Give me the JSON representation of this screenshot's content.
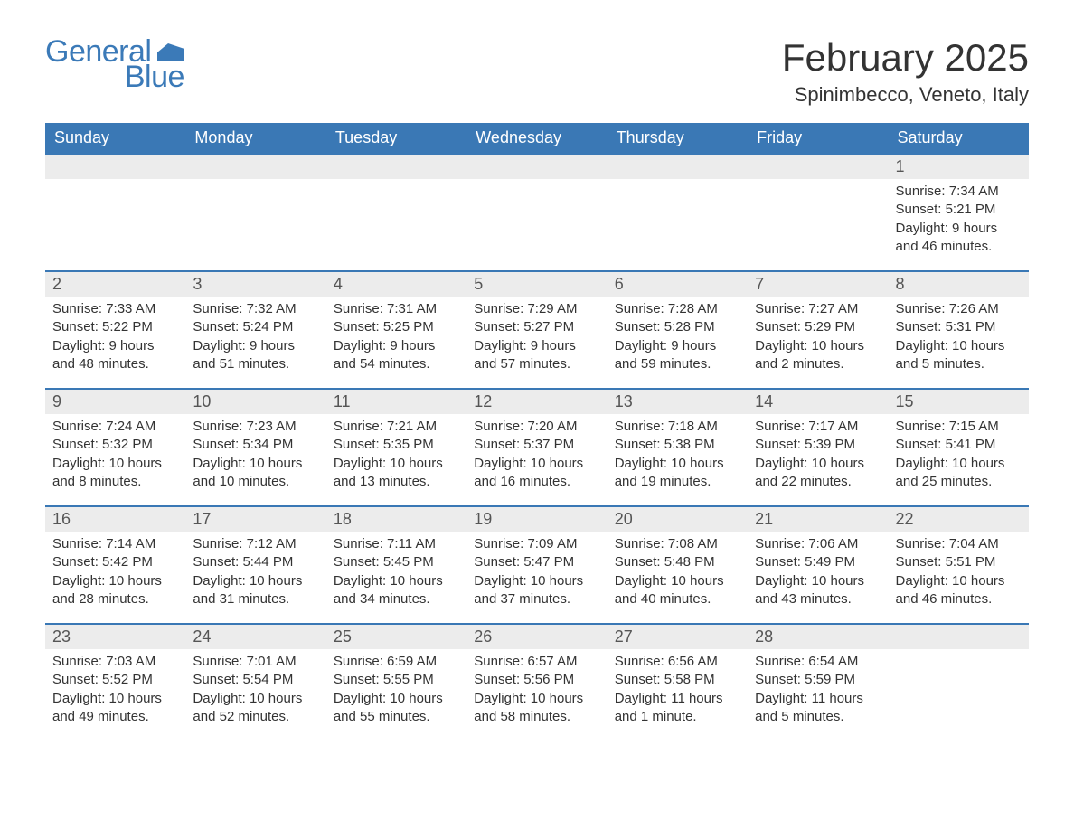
{
  "logo": {
    "text1": "General",
    "text2": "Blue"
  },
  "title": "February 2025",
  "location": "Spinimbecco, Veneto, Italy",
  "colors": {
    "header_bg": "#3a78b5",
    "header_text": "#ffffff",
    "daynum_bg": "#ececec",
    "daynum_border": "#3a78b5",
    "logo_color": "#3b7ab8",
    "body_text": "#333333"
  },
  "dayNames": [
    "Sunday",
    "Monday",
    "Tuesday",
    "Wednesday",
    "Thursday",
    "Friday",
    "Saturday"
  ],
  "weeks": [
    [
      null,
      null,
      null,
      null,
      null,
      null,
      {
        "n": "1",
        "sunrise": "Sunrise: 7:34 AM",
        "sunset": "Sunset: 5:21 PM",
        "daylight": "Daylight: 9 hours and 46 minutes."
      }
    ],
    [
      {
        "n": "2",
        "sunrise": "Sunrise: 7:33 AM",
        "sunset": "Sunset: 5:22 PM",
        "daylight": "Daylight: 9 hours and 48 minutes."
      },
      {
        "n": "3",
        "sunrise": "Sunrise: 7:32 AM",
        "sunset": "Sunset: 5:24 PM",
        "daylight": "Daylight: 9 hours and 51 minutes."
      },
      {
        "n": "4",
        "sunrise": "Sunrise: 7:31 AM",
        "sunset": "Sunset: 5:25 PM",
        "daylight": "Daylight: 9 hours and 54 minutes."
      },
      {
        "n": "5",
        "sunrise": "Sunrise: 7:29 AM",
        "sunset": "Sunset: 5:27 PM",
        "daylight": "Daylight: 9 hours and 57 minutes."
      },
      {
        "n": "6",
        "sunrise": "Sunrise: 7:28 AM",
        "sunset": "Sunset: 5:28 PM",
        "daylight": "Daylight: 9 hours and 59 minutes."
      },
      {
        "n": "7",
        "sunrise": "Sunrise: 7:27 AM",
        "sunset": "Sunset: 5:29 PM",
        "daylight": "Daylight: 10 hours and 2 minutes."
      },
      {
        "n": "8",
        "sunrise": "Sunrise: 7:26 AM",
        "sunset": "Sunset: 5:31 PM",
        "daylight": "Daylight: 10 hours and 5 minutes."
      }
    ],
    [
      {
        "n": "9",
        "sunrise": "Sunrise: 7:24 AM",
        "sunset": "Sunset: 5:32 PM",
        "daylight": "Daylight: 10 hours and 8 minutes."
      },
      {
        "n": "10",
        "sunrise": "Sunrise: 7:23 AM",
        "sunset": "Sunset: 5:34 PM",
        "daylight": "Daylight: 10 hours and 10 minutes."
      },
      {
        "n": "11",
        "sunrise": "Sunrise: 7:21 AM",
        "sunset": "Sunset: 5:35 PM",
        "daylight": "Daylight: 10 hours and 13 minutes."
      },
      {
        "n": "12",
        "sunrise": "Sunrise: 7:20 AM",
        "sunset": "Sunset: 5:37 PM",
        "daylight": "Daylight: 10 hours and 16 minutes."
      },
      {
        "n": "13",
        "sunrise": "Sunrise: 7:18 AM",
        "sunset": "Sunset: 5:38 PM",
        "daylight": "Daylight: 10 hours and 19 minutes."
      },
      {
        "n": "14",
        "sunrise": "Sunrise: 7:17 AM",
        "sunset": "Sunset: 5:39 PM",
        "daylight": "Daylight: 10 hours and 22 minutes."
      },
      {
        "n": "15",
        "sunrise": "Sunrise: 7:15 AM",
        "sunset": "Sunset: 5:41 PM",
        "daylight": "Daylight: 10 hours and 25 minutes."
      }
    ],
    [
      {
        "n": "16",
        "sunrise": "Sunrise: 7:14 AM",
        "sunset": "Sunset: 5:42 PM",
        "daylight": "Daylight: 10 hours and 28 minutes."
      },
      {
        "n": "17",
        "sunrise": "Sunrise: 7:12 AM",
        "sunset": "Sunset: 5:44 PM",
        "daylight": "Daylight: 10 hours and 31 minutes."
      },
      {
        "n": "18",
        "sunrise": "Sunrise: 7:11 AM",
        "sunset": "Sunset: 5:45 PM",
        "daylight": "Daylight: 10 hours and 34 minutes."
      },
      {
        "n": "19",
        "sunrise": "Sunrise: 7:09 AM",
        "sunset": "Sunset: 5:47 PM",
        "daylight": "Daylight: 10 hours and 37 minutes."
      },
      {
        "n": "20",
        "sunrise": "Sunrise: 7:08 AM",
        "sunset": "Sunset: 5:48 PM",
        "daylight": "Daylight: 10 hours and 40 minutes."
      },
      {
        "n": "21",
        "sunrise": "Sunrise: 7:06 AM",
        "sunset": "Sunset: 5:49 PM",
        "daylight": "Daylight: 10 hours and 43 minutes."
      },
      {
        "n": "22",
        "sunrise": "Sunrise: 7:04 AM",
        "sunset": "Sunset: 5:51 PM",
        "daylight": "Daylight: 10 hours and 46 minutes."
      }
    ],
    [
      {
        "n": "23",
        "sunrise": "Sunrise: 7:03 AM",
        "sunset": "Sunset: 5:52 PM",
        "daylight": "Daylight: 10 hours and 49 minutes."
      },
      {
        "n": "24",
        "sunrise": "Sunrise: 7:01 AM",
        "sunset": "Sunset: 5:54 PM",
        "daylight": "Daylight: 10 hours and 52 minutes."
      },
      {
        "n": "25",
        "sunrise": "Sunrise: 6:59 AM",
        "sunset": "Sunset: 5:55 PM",
        "daylight": "Daylight: 10 hours and 55 minutes."
      },
      {
        "n": "26",
        "sunrise": "Sunrise: 6:57 AM",
        "sunset": "Sunset: 5:56 PM",
        "daylight": "Daylight: 10 hours and 58 minutes."
      },
      {
        "n": "27",
        "sunrise": "Sunrise: 6:56 AM",
        "sunset": "Sunset: 5:58 PM",
        "daylight": "Daylight: 11 hours and 1 minute."
      },
      {
        "n": "28",
        "sunrise": "Sunrise: 6:54 AM",
        "sunset": "Sunset: 5:59 PM",
        "daylight": "Daylight: 11 hours and 5 minutes."
      },
      null
    ]
  ]
}
